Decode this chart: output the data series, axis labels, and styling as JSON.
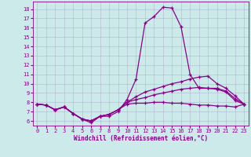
{
  "xlabel": "Windchill (Refroidissement éolien,°C)",
  "xlim": [
    -0.5,
    23.5
  ],
  "ylim": [
    5.5,
    18.8
  ],
  "xticks": [
    0,
    1,
    2,
    3,
    4,
    5,
    6,
    7,
    8,
    9,
    10,
    11,
    12,
    13,
    14,
    15,
    16,
    17,
    18,
    19,
    20,
    21,
    22,
    23
  ],
  "yticks": [
    6,
    7,
    8,
    9,
    10,
    11,
    12,
    13,
    14,
    15,
    16,
    17,
    18
  ],
  "bg_color": "#cceaea",
  "line_color": "#8b008b",
  "grid_color": "#b0b8cc",
  "lines": [
    [
      7.8,
      7.7,
      7.2,
      7.5,
      6.8,
      6.2,
      5.8,
      6.5,
      6.5,
      7.0,
      8.3,
      10.5,
      16.5,
      17.2,
      18.2,
      18.1,
      16.1,
      11.0,
      9.5,
      9.5,
      9.5,
      9.2,
      8.4,
      7.8
    ],
    [
      7.8,
      7.7,
      7.2,
      7.5,
      6.8,
      6.2,
      6.0,
      6.5,
      6.7,
      7.2,
      8.0,
      8.6,
      9.1,
      9.4,
      9.7,
      10.0,
      10.2,
      10.5,
      10.7,
      10.8,
      10.0,
      9.5,
      8.7,
      7.8
    ],
    [
      7.8,
      7.7,
      7.2,
      7.5,
      6.8,
      6.2,
      6.0,
      6.5,
      6.7,
      7.2,
      8.0,
      8.3,
      8.5,
      8.8,
      9.0,
      9.2,
      9.4,
      9.5,
      9.6,
      9.5,
      9.4,
      9.1,
      8.2,
      7.8
    ],
    [
      7.8,
      7.7,
      7.2,
      7.5,
      6.8,
      6.2,
      6.0,
      6.5,
      6.7,
      7.2,
      7.8,
      7.9,
      7.9,
      8.0,
      8.0,
      7.9,
      7.9,
      7.8,
      7.7,
      7.7,
      7.6,
      7.6,
      7.5,
      7.8
    ]
  ],
  "marker": "+",
  "tick_fontsize": 5.0,
  "xlabel_fontsize": 5.5,
  "linewidth": 0.9,
  "markersize": 3.0
}
